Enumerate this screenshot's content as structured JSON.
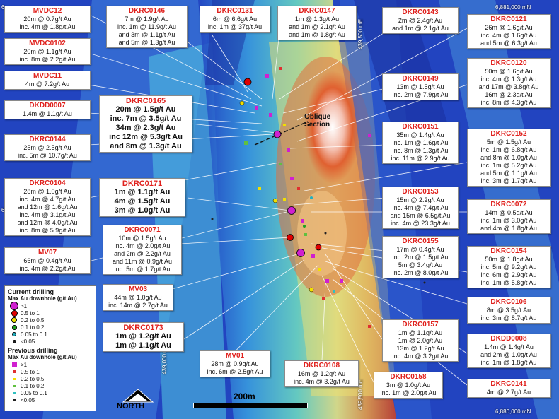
{
  "grid_labels": {
    "n_top": "6,881,000 mN",
    "n_bottom": "6,880,000 mN",
    "e_left": "439,000 mE",
    "e_mid_top": "439,500 mE",
    "e_mid_bottom": "439,500 mE",
    "y_top": "6",
    "y_mid": "6"
  },
  "oblique_section": [
    "Oblique",
    "Section"
  ],
  "scale": {
    "label": "200m"
  },
  "north": {
    "label": "NORTH"
  },
  "legend": {
    "current_title": "Current drilling",
    "current_sub": "Max Au downhole (g/t Au)",
    "current_items": [
      {
        "label": ">1",
        "color": "#d020d0"
      },
      {
        "label": "0.5   to  1",
        "color": "#e00000"
      },
      {
        "label": "0.2   to  0.5",
        "color": "#f2e000"
      },
      {
        "label": "0.1   to  0.2",
        "color": "#20a020"
      },
      {
        "label": "0.05  to  0.1",
        "color": "#20b0c0"
      },
      {
        "label": "<0.05",
        "color": "#202020"
      }
    ],
    "previous_title": "Previous drilling",
    "previous_sub": "Max Au downhole (g/t Au)",
    "previous_items": [
      {
        "label": ">1",
        "color": "#d020d0"
      },
      {
        "label": "0.5  to  1",
        "color": "#e03030"
      },
      {
        "label": "0.2  to  0.5",
        "color": "#f2e000"
      },
      {
        "label": "0.1  to  0.2",
        "color": "#60c040"
      },
      {
        "label": "0.05  to  0.1",
        "color": "#30c0c0"
      },
      {
        "label": "<0.05",
        "color": "#202020"
      }
    ]
  },
  "labels": [
    {
      "id": "MVDC12",
      "lines": [
        "20m @ 0.7g/t Au",
        "inc. 4m @ 1.8g/t Au"
      ]
    },
    {
      "id": "MVDC0102",
      "lines": [
        "20m @ 1.1g/t Au",
        "inc. 8m @ 2.2g/t Au"
      ]
    },
    {
      "id": "MVDC11",
      "lines": [
        "4m @ 7.2g/t Au"
      ]
    },
    {
      "id": "DKDD0007",
      "lines": [
        "1.4m @ 1.1g/t Au"
      ]
    },
    {
      "id": "DKRC0144",
      "lines": [
        "25m @ 2.5g/t Au",
        "inc. 5m @ 10.7g/t Au"
      ]
    },
    {
      "id": "DKRC0104",
      "lines": [
        "28m @ 1.0g/t Au",
        "inc. 4m @ 4.7g/t Au",
        "and 12m @ 1.6g/t Au",
        "inc. 4m @ 3.1g/t Au",
        "and 12m @ 4.0g/t Au",
        "inc. 8m @ 5.9g/t Au"
      ]
    },
    {
      "id": "MV07",
      "lines": [
        "66m @ 0.4g/t Au",
        "inc. 4m @ 2.2g/t Au"
      ]
    },
    {
      "id": "DKRC0146",
      "lines": [
        "7m @ 1.9g/t Au",
        "inc. 1m @ 11.9g/t Au",
        "and 3m @ 1.1g/t Au",
        "and 5m @ 1.3g/t Au"
      ]
    },
    {
      "id": "DKRC0131",
      "lines": [
        "6m @ 6.6g/t Au",
        "inc. 1m @ 37g/t Au"
      ]
    },
    {
      "id": "DKRC0147",
      "lines": [
        "1m @ 1.3g/t Au",
        "and 1m @ 2.1g/t Au",
        "and 1m @ 1.8g/t Au"
      ]
    },
    {
      "id": "DKRC0165",
      "lines": [
        "20m @ 1.5g/t Au",
        "inc. 7m @ 3.5g/t Au",
        "34m @ 2.3g/t Au",
        "inc 12m @ 5.3g/t Au",
        "and 8m @ 1.3g/t Au"
      ]
    },
    {
      "id": "DKRC0171",
      "lines": [
        "1m @ 1.1g/t Au",
        "4m @ 1.5g/t Au",
        "3m @ 1.0g/t Au"
      ]
    },
    {
      "id": "DKRC0071",
      "lines": [
        "10m @ 1.5g/t Au",
        "inc. 4m @ 2.0g/t Au",
        "and 2m @ 2.2g/t Au",
        "and 11m @ 0.9g/t Au",
        "inc. 5m @ 1.7g/t Au"
      ]
    },
    {
      "id": "MV03",
      "lines": [
        "44m @ 1.0g/t Au",
        "inc. 14m @ 2.7g/t Au"
      ]
    },
    {
      "id": "DKRC0173",
      "lines": [
        "1m @ 1.2g/t Au",
        "1m @ 1.1g/t Au"
      ]
    },
    {
      "id": "MV01",
      "lines": [
        "28m @ 0.9g/t Au",
        "inc. 6m @ 2.5g/t Au"
      ]
    },
    {
      "id": "DKRC0108",
      "lines": [
        "16m @ 1.2g/t Au",
        "inc. 4m @ 3.2g/t Au"
      ]
    },
    {
      "id": "DKRC0158",
      "lines": [
        "3m @ 1.0g/t Au",
        "inc. 1m @ 2.0g/t Au"
      ]
    },
    {
      "id": "DKRC0143",
      "lines": [
        "2m @ 2.4g/t Au",
        "and 1m @ 2.1g/t Au"
      ]
    },
    {
      "id": "DKRC0149",
      "lines": [
        "13m @ 1.5g/t Au",
        "inc. 2m @ 7.9g/t Au"
      ]
    },
    {
      "id": "DKRC0151",
      "lines": [
        "35m @ 1.4g/t Au",
        "inc. 1m @ 1.6g/t Au",
        "inc. 8m @ 1.3g/t Au",
        "inc. 11m @ 2.9g/t Au"
      ]
    },
    {
      "id": "DKRC0153",
      "lines": [
        "15m @ 2.2g/t Au",
        "inc. 4m @ 7.4g/t Au",
        "and 15m @ 6.5g/t Au",
        "inc. 4m @ 23.3g/t Au"
      ]
    },
    {
      "id": "DKRC0155",
      "lines": [
        "17m @ 0.4g/t Au",
        "inc. 2m @ 1.5g/t Au",
        "5m @ 3.4g/t Au",
        "inc. 2m @ 8.0g/t Au"
      ]
    },
    {
      "id": "DKRC0157",
      "lines": [
        "1m @ 1.1g/t Au",
        "1m @ 2.0g/t Au",
        "13m @ 1.2g/t Au",
        "inc. 4m @ 3.2g/t Au"
      ]
    },
    {
      "id": "DKRC0121",
      "lines": [
        "26m @ 1.6g/t Au",
        "inc. 4m @ 1.6g/t Au",
        "and 5m @ 6.3g/t Au"
      ]
    },
    {
      "id": "DKRC0120",
      "lines": [
        "50m @ 1.6g/t Au",
        "inc. 4m @ 1.3g/t Au",
        "and 17m @ 3.8g/t Au",
        "16m @ 2.3g/t Au",
        "inc. 8m @ 4.3g/t Au"
      ]
    },
    {
      "id": "DKRC0152",
      "lines": [
        "5m @ 1.5g/t Au",
        "inc. 1m @ 6.8g/t Au",
        "and 8m @ 1.0g/t Au",
        "inc. 1m @ 5.2g/t Au",
        "and 5m @ 1.1g/t Au",
        "inc. 3m @ 1.7g/t Au"
      ]
    },
    {
      "id": "DKRC0072",
      "lines": [
        "14m @ 0.5g/t Au",
        "inc. 1m @ 3.0g/t Au",
        "and 4m @ 1.8g/t Au"
      ]
    },
    {
      "id": "DKRC0154",
      "lines": [
        "50m @ 1.8g/t Au",
        "inc. 5m @ 9.2g/t Au",
        "inc. 6m @ 2.9g/t Au",
        "inc. 1m @ 5.8g/t Au"
      ]
    },
    {
      "id": "DKRC0106",
      "lines": [
        "8m @ 3.5g/t Au",
        "inc. 3m @ 8.7g/t Au"
      ]
    },
    {
      "id": "DKDD0008",
      "lines": [
        "1.4m @ 1.4g/t Au",
        "and 2m @ 1.0g/t Au",
        "inc. 1m @ 1.8g/t Au"
      ]
    },
    {
      "id": "DKRC0141",
      "lines": [
        "4m @ 2.7g/t Au"
      ]
    }
  ]
}
